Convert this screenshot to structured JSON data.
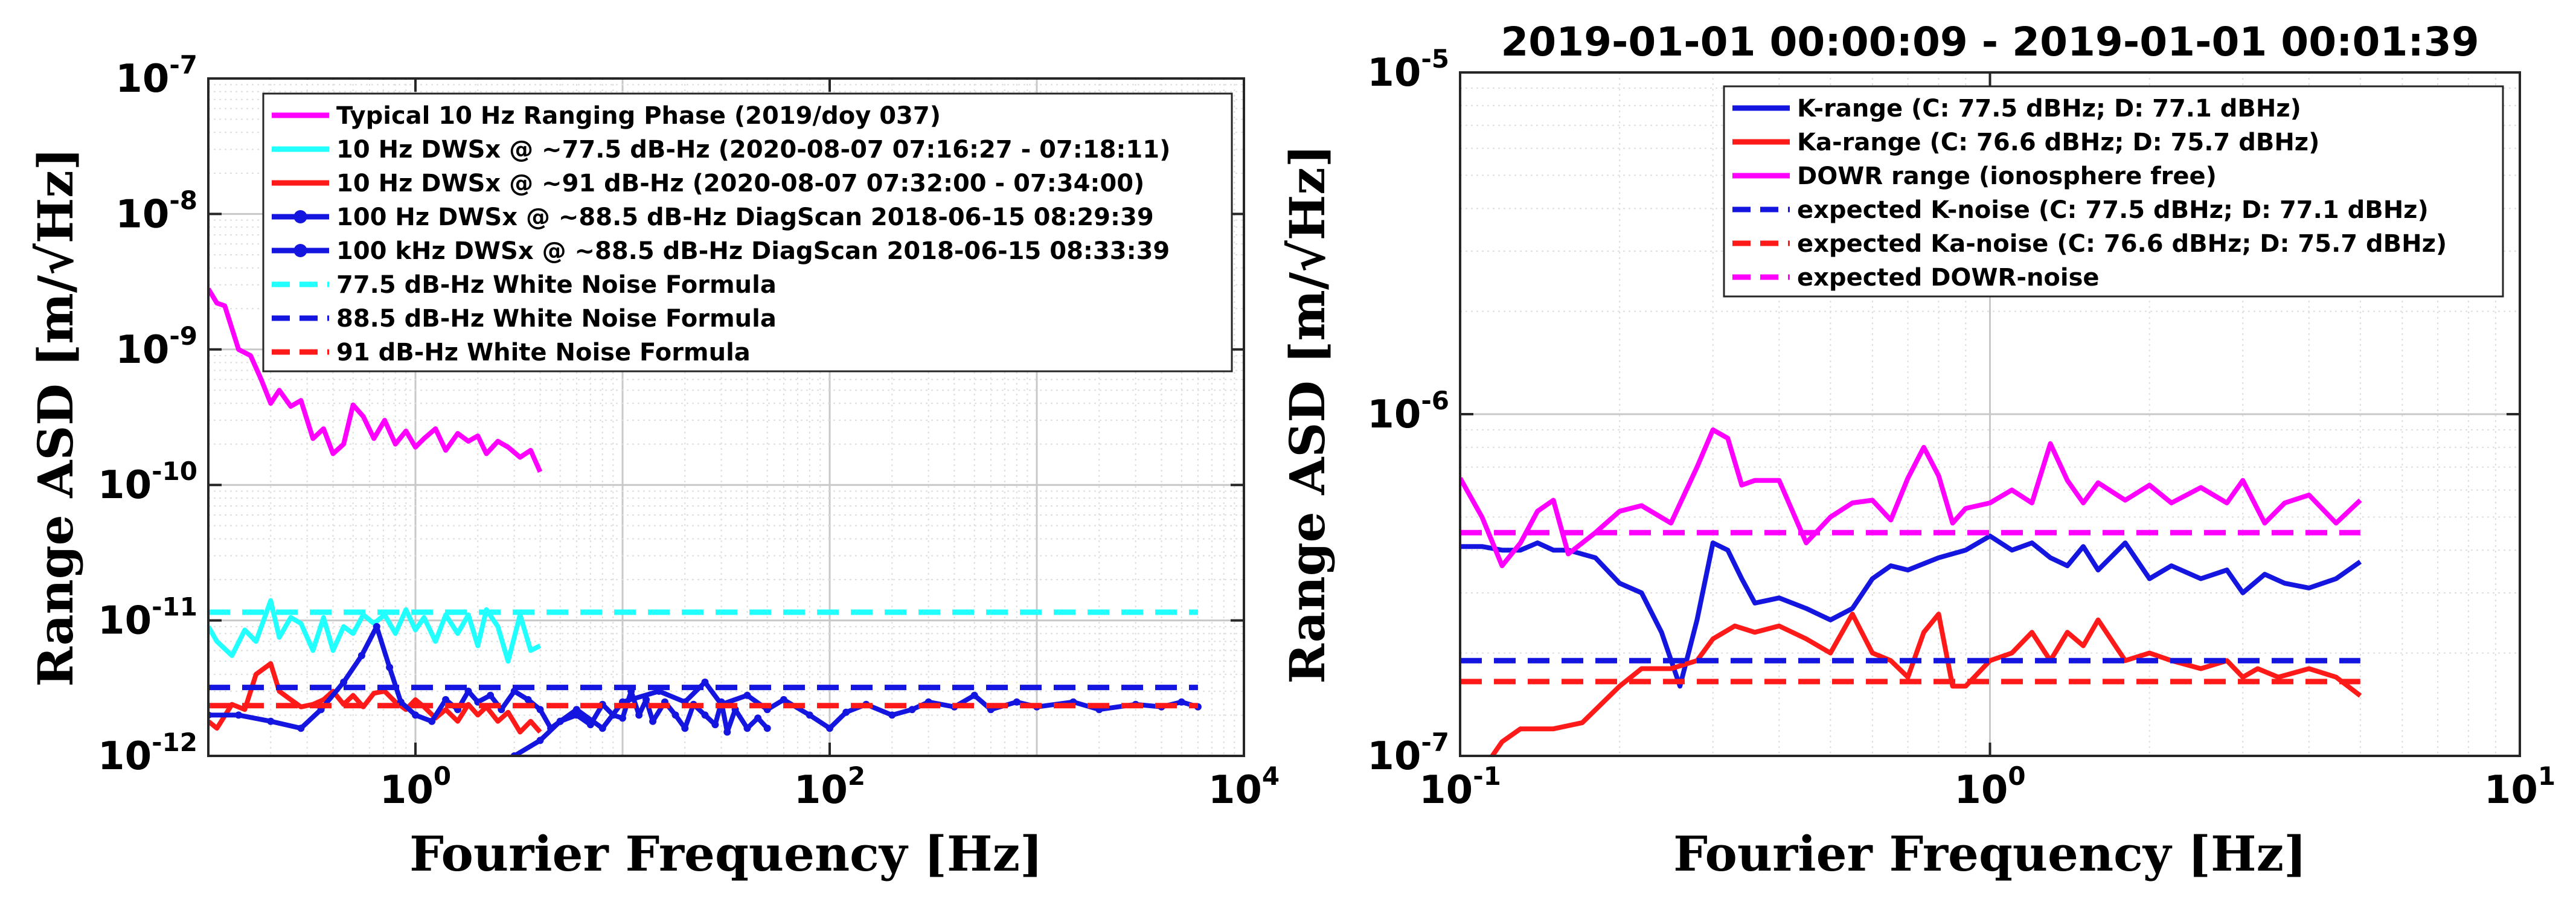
{
  "chart_data": [
    {
      "type": "line",
      "title": "",
      "xlabel": "Fourier Frequency [Hz]",
      "ylabel": "Range ASD [m/√Hz]",
      "xscale": "log",
      "yscale": "log",
      "xlim": [
        0.1,
        10000
      ],
      "ylim": [
        1e-12,
        1e-07
      ],
      "grid": true,
      "legend_position": "top",
      "x_ticks": [
        {
          "value": 1,
          "base": "10",
          "exp": "0"
        },
        {
          "value": 100,
          "base": "10",
          "exp": "2"
        },
        {
          "value": 10000,
          "base": "10",
          "exp": "4"
        }
      ],
      "y_ticks": [
        {
          "value": 1e-12,
          "base": "10",
          "exp": "-12"
        },
        {
          "value": 1e-11,
          "base": "10",
          "exp": "-11"
        },
        {
          "value": 1e-10,
          "base": "10",
          "exp": "-10"
        },
        {
          "value": 1e-09,
          "base": "10",
          "exp": "-9"
        },
        {
          "value": 1e-08,
          "base": "10",
          "exp": "-8"
        },
        {
          "value": 1e-07,
          "base": "10",
          "exp": "-7"
        }
      ],
      "series": [
        {
          "name": "Typical 10 Hz Ranging Phase (2019/doy 037)",
          "color": "#ff00ff",
          "style": "solid",
          "x": [
            0.1,
            0.11,
            0.12,
            0.14,
            0.16,
            0.18,
            0.2,
            0.22,
            0.25,
            0.28,
            0.32,
            0.36,
            0.4,
            0.45,
            0.5,
            0.56,
            0.63,
            0.71,
            0.8,
            0.9,
            1.0,
            1.1,
            1.25,
            1.4,
            1.6,
            1.8,
            2.0,
            2.2,
            2.5,
            2.8,
            3.2,
            3.6,
            4.0
          ],
          "values": [
            2.8e-09,
            2.2e-09,
            2.1e-09,
            1e-09,
            9e-10,
            6e-10,
            4e-10,
            5e-10,
            3.8e-10,
            4.2e-10,
            2.2e-10,
            2.6e-10,
            1.7e-10,
            2e-10,
            3.9e-10,
            3.2e-10,
            2.2e-10,
            3e-10,
            2e-10,
            2.5e-10,
            1.9e-10,
            2.2e-10,
            2.6e-10,
            1.8e-10,
            2.4e-10,
            2.1e-10,
            2.3e-10,
            1.7e-10,
            2.1e-10,
            1.9e-10,
            1.6e-10,
            1.8e-10,
            1.25e-10
          ]
        },
        {
          "name": "10 Hz DWSx @ ~77.5 dB-Hz (2020-08-07 07:16:27 - 07:18:11)",
          "color": "#22ffff",
          "style": "solid",
          "x": [
            0.1,
            0.11,
            0.13,
            0.15,
            0.17,
            0.2,
            0.22,
            0.25,
            0.28,
            0.32,
            0.36,
            0.4,
            0.45,
            0.5,
            0.56,
            0.63,
            0.71,
            0.8,
            0.9,
            1.0,
            1.1,
            1.25,
            1.4,
            1.6,
            1.8,
            2.0,
            2.2,
            2.5,
            2.8,
            3.2,
            3.6,
            4.0
          ],
          "values": [
            9e-12,
            7e-12,
            5.5e-12,
            8.5e-12,
            7e-12,
            1.4e-11,
            7.5e-12,
            1.05e-11,
            9.5e-12,
            6e-12,
            1.05e-11,
            6e-12,
            9e-12,
            8e-12,
            1.1e-11,
            9.5e-12,
            1.1e-11,
            8e-12,
            1.2e-11,
            8.5e-12,
            1.05e-11,
            7e-12,
            1.1e-11,
            8e-12,
            1.1e-11,
            6.5e-12,
            1.2e-11,
            9e-12,
            5e-12,
            1.1e-11,
            6e-12,
            6.5e-12
          ]
        },
        {
          "name": "10 Hz DWSx @ ~91 dB-Hz  (2020-08-07 07:32:00 - 07:34:00)",
          "color": "#ff1a1a",
          "style": "solid",
          "x": [
            0.1,
            0.11,
            0.13,
            0.15,
            0.17,
            0.2,
            0.22,
            0.25,
            0.28,
            0.32,
            0.36,
            0.4,
            0.45,
            0.5,
            0.56,
            0.63,
            0.71,
            0.8,
            0.9,
            1.0,
            1.1,
            1.25,
            1.4,
            1.6,
            1.8,
            2.0,
            2.2,
            2.5,
            2.8,
            3.2,
            3.6,
            4.0
          ],
          "values": [
            1.8e-12,
            1.6e-12,
            2.4e-12,
            2.2e-12,
            4e-12,
            4.8e-12,
            3e-12,
            2.6e-12,
            2.3e-12,
            2.4e-12,
            2.6e-12,
            3e-12,
            2.4e-12,
            2.8e-12,
            2.3e-12,
            2.9e-12,
            3e-12,
            2.5e-12,
            2.2e-12,
            2.6e-12,
            2.3e-12,
            1.9e-12,
            2.2e-12,
            1.8e-12,
            2.4e-12,
            2e-12,
            2.3e-12,
            1.8e-12,
            2.1e-12,
            1.5e-12,
            1.8e-12,
            1.5e-12
          ]
        },
        {
          "name": "100 Hz DWSx @ ~88.5 dB-Hz DiagScan 2018-06-15 08:29:39",
          "color": "#1515e0",
          "style": "solid-marker",
          "x": [
            0.1,
            0.14,
            0.2,
            0.28,
            0.35,
            0.45,
            0.55,
            0.65,
            0.75,
            0.85,
            1.0,
            1.2,
            1.4,
            1.6,
            1.8,
            2.0,
            2.3,
            2.6,
            3.0,
            3.5,
            4.0,
            4.5,
            5.0,
            6.0,
            7.0,
            8.0,
            9.0,
            10,
            11,
            12,
            13,
            14,
            16,
            18,
            20,
            22,
            25,
            28,
            30,
            32,
            35,
            40,
            45,
            50
          ],
          "values": [
            2e-12,
            2e-12,
            1.8e-12,
            1.6e-12,
            2.2e-12,
            3.5e-12,
            5.5e-12,
            9e-12,
            4.5e-12,
            2.5e-12,
            2e-12,
            1.8e-12,
            2.6e-12,
            2.2e-12,
            3e-12,
            2.5e-12,
            2.8e-12,
            2.2e-12,
            3e-12,
            2.6e-12,
            2.2e-12,
            1.6e-12,
            1.8e-12,
            2e-12,
            1.7e-12,
            2.4e-12,
            2e-12,
            1.9e-12,
            3e-12,
            2e-12,
            2.6e-12,
            1.8e-12,
            2.5e-12,
            2e-12,
            1.6e-12,
            2.4e-12,
            2e-12,
            1.7e-12,
            2.5e-12,
            1.5e-12,
            2.2e-12,
            1.6e-12,
            1.9e-12,
            1.6e-12
          ]
        },
        {
          "name": "100 kHz DWSx @ ~88.5 dB-Hz DiagScan 2018-06-15 08:33:39",
          "color": "#1515e0",
          "style": "solid-marker",
          "x": [
            3,
            4,
            5,
            6,
            8,
            10,
            15,
            20,
            25,
            30,
            40,
            50,
            60,
            80,
            100,
            120,
            150,
            200,
            250,
            300,
            400,
            500,
            600,
            800,
            1000,
            1500,
            2000,
            3000,
            4000,
            5000,
            6000
          ],
          "values": [
            1e-12,
            1.3e-12,
            1.8e-12,
            2.2e-12,
            1.6e-12,
            2.5e-12,
            3e-12,
            2.5e-12,
            3.5e-12,
            2.4e-12,
            2.8e-12,
            2.2e-12,
            2.6e-12,
            2e-12,
            1.6e-12,
            2.1e-12,
            2.4e-12,
            2e-12,
            2.2e-12,
            2.5e-12,
            2.3e-12,
            2.8e-12,
            2.2e-12,
            2.5e-12,
            2.3e-12,
            2.5e-12,
            2.2e-12,
            2.4e-12,
            2.3e-12,
            2.5e-12,
            2.3e-12
          ]
        },
        {
          "name": "77.5 dB-Hz White Noise Formula",
          "color": "#22ffff",
          "style": "dashed",
          "x": [
            0.1,
            6000
          ],
          "values": [
            1.15e-11,
            1.15e-11
          ]
        },
        {
          "name": "88.5 dB-Hz White Noise Formula",
          "color": "#1515e0",
          "style": "dashed",
          "x": [
            0.1,
            6000
          ],
          "values": [
            3.2e-12,
            3.2e-12
          ]
        },
        {
          "name": "91 dB-Hz  White Noise Formula",
          "color": "#ff1a1a",
          "style": "dashed",
          "x": [
            0.1,
            6000
          ],
          "values": [
            2.35e-12,
            2.35e-12
          ]
        }
      ]
    },
    {
      "type": "line",
      "title": "2019-01-01 00:00:09 - 2019-01-01 00:01:39",
      "xlabel": "Fourier Frequency [Hz]",
      "ylabel": "Range ASD [m/√Hz]",
      "xscale": "log",
      "yscale": "log",
      "xlim": [
        0.1,
        10
      ],
      "ylim": [
        1e-07,
        1e-05
      ],
      "grid": true,
      "legend_position": "top-right",
      "x_ticks": [
        {
          "value": 0.1,
          "base": "10",
          "exp": "-1"
        },
        {
          "value": 1,
          "base": "10",
          "exp": "0"
        },
        {
          "value": 10,
          "base": "10",
          "exp": "1"
        }
      ],
      "y_ticks": [
        {
          "value": 1e-07,
          "base": "10",
          "exp": "-7"
        },
        {
          "value": 1e-06,
          "base": "10",
          "exp": "-6"
        },
        {
          "value": 1e-05,
          "base": "10",
          "exp": "-5"
        }
      ],
      "series": [
        {
          "name": "K-range (C: 77.5 dBHz; D: 77.1 dBHz)",
          "color": "#1515e0",
          "style": "solid",
          "x": [
            0.1,
            0.11,
            0.12,
            0.13,
            0.14,
            0.15,
            0.16,
            0.18,
            0.2,
            0.22,
            0.24,
            0.26,
            0.28,
            0.3,
            0.32,
            0.34,
            0.36,
            0.4,
            0.45,
            0.5,
            0.55,
            0.6,
            0.65,
            0.7,
            0.8,
            0.9,
            1.0,
            1.1,
            1.2,
            1.3,
            1.4,
            1.5,
            1.6,
            1.8,
            2.0,
            2.2,
            2.5,
            2.8,
            3.0,
            3.3,
            3.6,
            4.0,
            4.5,
            5.0
          ],
          "values": [
            4.1e-07,
            4.1e-07,
            4e-07,
            4e-07,
            4.2e-07,
            4e-07,
            4e-07,
            3.8e-07,
            3.2e-07,
            3e-07,
            2.3e-07,
            1.6e-07,
            2.5e-07,
            4.2e-07,
            4e-07,
            3.3e-07,
            2.8e-07,
            2.9e-07,
            2.7e-07,
            2.5e-07,
            2.7e-07,
            3.3e-07,
            3.6e-07,
            3.5e-07,
            3.8e-07,
            4e-07,
            4.4e-07,
            4e-07,
            4.2e-07,
            3.8e-07,
            3.6e-07,
            4.1e-07,
            3.5e-07,
            4.2e-07,
            3.3e-07,
            3.6e-07,
            3.3e-07,
            3.5e-07,
            3e-07,
            3.4e-07,
            3.2e-07,
            3.1e-07,
            3.3e-07,
            3.7e-07
          ]
        },
        {
          "name": "Ka-range (C: 76.6 dBHz; D: 75.7 dBHz)",
          "color": "#ff1a1a",
          "style": "solid",
          "x": [
            0.115,
            0.12,
            0.13,
            0.15,
            0.17,
            0.2,
            0.22,
            0.25,
            0.28,
            0.3,
            0.33,
            0.36,
            0.4,
            0.45,
            0.5,
            0.55,
            0.6,
            0.65,
            0.7,
            0.75,
            0.8,
            0.85,
            0.9,
            1.0,
            1.1,
            1.2,
            1.3,
            1.4,
            1.5,
            1.6,
            1.8,
            2.0,
            2.2,
            2.5,
            2.8,
            3.0,
            3.2,
            3.5,
            4.0,
            4.5,
            5.0
          ],
          "values": [
            1e-07,
            1.1e-07,
            1.2e-07,
            1.2e-07,
            1.25e-07,
            1.6e-07,
            1.8e-07,
            1.8e-07,
            1.9e-07,
            2.2e-07,
            2.4e-07,
            2.3e-07,
            2.4e-07,
            2.2e-07,
            2e-07,
            2.6e-07,
            2e-07,
            1.9e-07,
            1.7e-07,
            2.3e-07,
            2.6e-07,
            1.6e-07,
            1.6e-07,
            1.9e-07,
            2e-07,
            2.3e-07,
            1.9e-07,
            2.3e-07,
            2.1e-07,
            2.5e-07,
            1.9e-07,
            2e-07,
            1.9e-07,
            1.8e-07,
            1.9e-07,
            1.7e-07,
            1.8e-07,
            1.7e-07,
            1.8e-07,
            1.7e-07,
            1.5e-07
          ]
        },
        {
          "name": "DOWR range (ionosphere free)",
          "color": "#ff00ff",
          "style": "solid",
          "x": [
            0.1,
            0.11,
            0.12,
            0.13,
            0.14,
            0.15,
            0.16,
            0.18,
            0.2,
            0.22,
            0.25,
            0.28,
            0.3,
            0.32,
            0.34,
            0.36,
            0.4,
            0.45,
            0.5,
            0.55,
            0.6,
            0.65,
            0.7,
            0.75,
            0.8,
            0.85,
            0.9,
            1.0,
            1.1,
            1.2,
            1.3,
            1.4,
            1.5,
            1.6,
            1.8,
            2.0,
            2.2,
            2.5,
            2.8,
            3.0,
            3.3,
            3.6,
            4.0,
            4.5,
            5.0
          ],
          "values": [
            6.5e-07,
            5e-07,
            3.6e-07,
            4.2e-07,
            5.2e-07,
            5.6e-07,
            3.9e-07,
            4.5e-07,
            5.2e-07,
            5.4e-07,
            4.8e-07,
            7e-07,
            9e-07,
            8.5e-07,
            6.2e-07,
            6.4e-07,
            6.4e-07,
            4.2e-07,
            5e-07,
            5.5e-07,
            5.6e-07,
            4.9e-07,
            6.5e-07,
            8e-07,
            6.6e-07,
            4.8e-07,
            5.3e-07,
            5.5e-07,
            6e-07,
            5.5e-07,
            8.2e-07,
            6.4e-07,
            5.5e-07,
            6.3e-07,
            5.6e-07,
            6.2e-07,
            5.5e-07,
            6.1e-07,
            5.5e-07,
            6.4e-07,
            4.8e-07,
            5.5e-07,
            5.8e-07,
            4.8e-07,
            5.6e-07
          ]
        },
        {
          "name": "expected K-noise (C: 77.5 dBHz; D: 77.1 dBHz)",
          "color": "#1515e0",
          "style": "dashed",
          "x": [
            0.1,
            5.0
          ],
          "values": [
            1.9e-07,
            1.9e-07
          ]
        },
        {
          "name": "expected Ka-noise (C: 76.6 dBHz; D: 75.7 dBHz)",
          "color": "#ff1a1a",
          "style": "dashed",
          "x": [
            0.1,
            5.0
          ],
          "values": [
            1.65e-07,
            1.65e-07
          ]
        },
        {
          "name": "expected DOWR-noise",
          "color": "#ff00ff",
          "style": "dashed",
          "x": [
            0.1,
            5.0
          ],
          "values": [
            4.5e-07,
            4.5e-07
          ]
        }
      ]
    }
  ]
}
